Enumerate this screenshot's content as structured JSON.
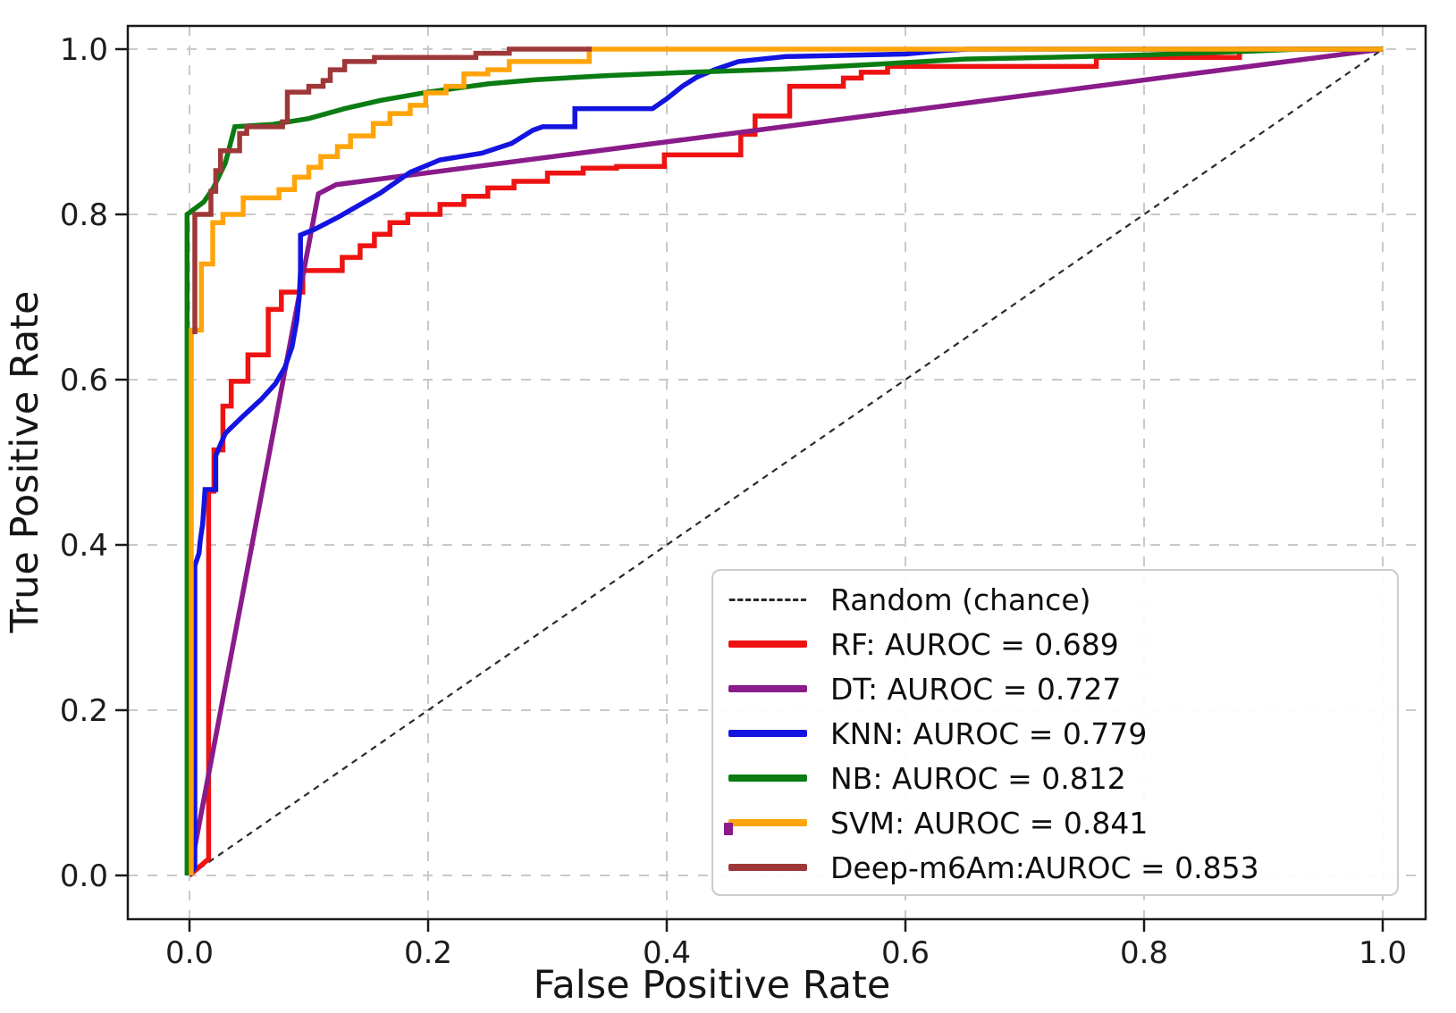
{
  "figure": {
    "type_note": "ROC curve comparison figure",
    "background": "#ffffff"
  },
  "colors": {
    "spine": "#1a1a1a",
    "grid": "#c9c9c9",
    "tick_label": "#1c1c1c",
    "legend_border": "#cccccc",
    "artifact_purple": "#8a1b8a"
  },
  "chart_data": {
    "type": "line",
    "title": "",
    "xlabel": "False Positive Rate",
    "ylabel": "True Positive Rate",
    "xlim": [
      -0.052,
      1.035
    ],
    "ylim": [
      -0.053,
      1.028
    ],
    "xticks": [
      0.0,
      0.2,
      0.4,
      0.6,
      0.8,
      1.0
    ],
    "yticks": [
      0.0,
      0.2,
      0.4,
      0.6,
      0.8,
      1.0
    ],
    "grid": true,
    "grid_style": "dashed",
    "legend_position": "lower right",
    "series": [
      {
        "name": "Random (chance)",
        "color": "#2a2a2a",
        "style": "dashed",
        "width": 2.2,
        "points": [
          [
            0,
            0
          ],
          [
            1,
            1
          ]
        ]
      },
      {
        "name": "RF: AUROC = 0.689",
        "auroc": 0.689,
        "color": "#ee1312",
        "style": "solid",
        "width": 5.5,
        "points": [
          [
            0,
            0
          ],
          [
            0.016,
            0.02
          ],
          [
            0.016,
            0.465
          ],
          [
            0.0205,
            0.465
          ],
          [
            0.0205,
            0.515
          ],
          [
            0.028,
            0.515
          ],
          [
            0.028,
            0.568
          ],
          [
            0.035,
            0.568
          ],
          [
            0.035,
            0.598
          ],
          [
            0.049,
            0.598
          ],
          [
            0.049,
            0.63
          ],
          [
            0.066,
            0.63
          ],
          [
            0.066,
            0.685
          ],
          [
            0.077,
            0.685
          ],
          [
            0.077,
            0.706
          ],
          [
            0.095,
            0.706
          ],
          [
            0.095,
            0.732
          ],
          [
            0.128,
            0.732
          ],
          [
            0.128,
            0.748
          ],
          [
            0.143,
            0.748
          ],
          [
            0.143,
            0.762
          ],
          [
            0.155,
            0.762
          ],
          [
            0.155,
            0.776
          ],
          [
            0.168,
            0.776
          ],
          [
            0.168,
            0.79
          ],
          [
            0.183,
            0.79
          ],
          [
            0.183,
            0.8
          ],
          [
            0.21,
            0.8
          ],
          [
            0.21,
            0.812
          ],
          [
            0.23,
            0.812
          ],
          [
            0.23,
            0.822
          ],
          [
            0.25,
            0.822
          ],
          [
            0.25,
            0.832
          ],
          [
            0.272,
            0.832
          ],
          [
            0.272,
            0.84
          ],
          [
            0.3,
            0.84
          ],
          [
            0.3,
            0.85
          ],
          [
            0.33,
            0.85
          ],
          [
            0.33,
            0.856
          ],
          [
            0.358,
            0.856
          ],
          [
            0.358,
            0.858
          ],
          [
            0.398,
            0.858
          ],
          [
            0.398,
            0.872
          ],
          [
            0.462,
            0.872
          ],
          [
            0.462,
            0.897
          ],
          [
            0.474,
            0.897
          ],
          [
            0.474,
            0.919
          ],
          [
            0.503,
            0.919
          ],
          [
            0.503,
            0.955
          ],
          [
            0.548,
            0.955
          ],
          [
            0.548,
            0.965
          ],
          [
            0.563,
            0.965
          ],
          [
            0.563,
            0.972
          ],
          [
            0.585,
            0.972
          ],
          [
            0.585,
            0.979
          ],
          [
            0.76,
            0.979
          ],
          [
            0.76,
            0.99
          ],
          [
            0.88,
            0.99
          ],
          [
            0.88,
            1
          ],
          [
            1,
            1
          ]
        ]
      },
      {
        "name": "DT: AUROC = 0.727",
        "auroc": 0.727,
        "color": "#8a1b8a",
        "style": "solid",
        "width": 5.5,
        "points": [
          [
            0,
            0
          ],
          [
            0.108,
            0.825
          ],
          [
            0.123,
            0.836
          ],
          [
            1,
            1
          ]
        ]
      },
      {
        "name": "KNN: AUROC = 0.779",
        "auroc": 0.779,
        "color": "#1414e0",
        "style": "solid",
        "width": 5.5,
        "points": [
          [
            0,
            0
          ],
          [
            0.0045,
            0.01
          ],
          [
            0.0045,
            0.375
          ],
          [
            0.008,
            0.39
          ],
          [
            0.009,
            0.405
          ],
          [
            0.011,
            0.425
          ],
          [
            0.012,
            0.445
          ],
          [
            0.013,
            0.467
          ],
          [
            0.022,
            0.467
          ],
          [
            0.022,
            0.508
          ],
          [
            0.03,
            0.535
          ],
          [
            0.045,
            0.556
          ],
          [
            0.06,
            0.576
          ],
          [
            0.072,
            0.595
          ],
          [
            0.08,
            0.615
          ],
          [
            0.086,
            0.64
          ],
          [
            0.09,
            0.672
          ],
          [
            0.092,
            0.7
          ],
          [
            0.093,
            0.732
          ],
          [
            0.093,
            0.775
          ],
          [
            0.105,
            0.782
          ],
          [
            0.125,
            0.797
          ],
          [
            0.16,
            0.826
          ],
          [
            0.185,
            0.851
          ],
          [
            0.21,
            0.866
          ],
          [
            0.245,
            0.874
          ],
          [
            0.27,
            0.886
          ],
          [
            0.288,
            0.902
          ],
          [
            0.296,
            0.906
          ],
          [
            0.323,
            0.906
          ],
          [
            0.323,
            0.928
          ],
          [
            0.388,
            0.928
          ],
          [
            0.4,
            0.94
          ],
          [
            0.413,
            0.955
          ],
          [
            0.425,
            0.966
          ],
          [
            0.44,
            0.975
          ],
          [
            0.46,
            0.985
          ],
          [
            0.5,
            0.991
          ],
          [
            0.6,
            0.994
          ],
          [
            0.63,
            0.998
          ],
          [
            0.652,
            1
          ],
          [
            1,
            1
          ]
        ]
      },
      {
        "name": "NB: AUROC = 0.812",
        "auroc": 0.812,
        "color": "#0b7c12",
        "style": "solid",
        "width": 5.5,
        "points": [
          [
            -0.002,
            0
          ],
          [
            -0.002,
            0.8
          ],
          [
            0.012,
            0.815
          ],
          [
            0.02,
            0.832
          ],
          [
            0.03,
            0.862
          ],
          [
            0.038,
            0.906
          ],
          [
            0.07,
            0.909
          ],
          [
            0.1,
            0.916
          ],
          [
            0.13,
            0.928
          ],
          [
            0.16,
            0.938
          ],
          [
            0.2,
            0.948
          ],
          [
            0.25,
            0.958
          ],
          [
            0.29,
            0.963
          ],
          [
            0.35,
            0.968
          ],
          [
            0.42,
            0.972
          ],
          [
            0.5,
            0.976
          ],
          [
            0.58,
            0.982
          ],
          [
            0.65,
            0.988
          ],
          [
            0.72,
            0.99
          ],
          [
            0.8,
            0.993
          ],
          [
            0.88,
            0.997
          ],
          [
            0.93,
            1
          ],
          [
            1,
            1
          ]
        ]
      },
      {
        "name": "SVM: AUROC = 0.841",
        "auroc": 0.841,
        "color": "#ffa40a",
        "style": "solid",
        "width": 5.5,
        "points": [
          [
            0.0015,
            0
          ],
          [
            0.0015,
            0.66
          ],
          [
            0.01,
            0.66
          ],
          [
            0.01,
            0.74
          ],
          [
            0.0195,
            0.74
          ],
          [
            0.0195,
            0.79
          ],
          [
            0.028,
            0.79
          ],
          [
            0.028,
            0.8
          ],
          [
            0.045,
            0.8
          ],
          [
            0.045,
            0.82
          ],
          [
            0.075,
            0.82
          ],
          [
            0.075,
            0.83
          ],
          [
            0.088,
            0.83
          ],
          [
            0.088,
            0.845
          ],
          [
            0.1,
            0.845
          ],
          [
            0.1,
            0.857
          ],
          [
            0.11,
            0.857
          ],
          [
            0.11,
            0.87
          ],
          [
            0.124,
            0.87
          ],
          [
            0.124,
            0.882
          ],
          [
            0.135,
            0.882
          ],
          [
            0.135,
            0.895
          ],
          [
            0.154,
            0.895
          ],
          [
            0.154,
            0.91
          ],
          [
            0.168,
            0.91
          ],
          [
            0.168,
            0.922
          ],
          [
            0.185,
            0.922
          ],
          [
            0.185,
            0.932
          ],
          [
            0.198,
            0.932
          ],
          [
            0.198,
            0.947
          ],
          [
            0.215,
            0.947
          ],
          [
            0.215,
            0.955
          ],
          [
            0.23,
            0.955
          ],
          [
            0.23,
            0.97
          ],
          [
            0.25,
            0.97
          ],
          [
            0.25,
            0.975
          ],
          [
            0.268,
            0.975
          ],
          [
            0.268,
            0.985
          ],
          [
            0.335,
            0.985
          ],
          [
            0.335,
            1
          ],
          [
            1,
            1
          ]
        ]
      },
      {
        "name": "Deep-m6Am:AUROC = 0.853",
        "auroc": 0.853,
        "color": "#9e3838",
        "style": "solid",
        "width": 5.5,
        "points": [
          [
            0.0045,
            0.655
          ],
          [
            0.0045,
            0.8
          ],
          [
            0.018,
            0.8
          ],
          [
            0.018,
            0.828
          ],
          [
            0.022,
            0.828
          ],
          [
            0.022,
            0.853
          ],
          [
            0.026,
            0.853
          ],
          [
            0.026,
            0.877
          ],
          [
            0.042,
            0.877
          ],
          [
            0.042,
            0.898
          ],
          [
            0.048,
            0.898
          ],
          [
            0.048,
            0.906
          ],
          [
            0.078,
            0.906
          ],
          [
            0.078,
            0.912
          ],
          [
            0.082,
            0.912
          ],
          [
            0.082,
            0.948
          ],
          [
            0.1,
            0.948
          ],
          [
            0.1,
            0.955
          ],
          [
            0.112,
            0.955
          ],
          [
            0.112,
            0.962
          ],
          [
            0.118,
            0.962
          ],
          [
            0.118,
            0.975
          ],
          [
            0.13,
            0.975
          ],
          [
            0.13,
            0.985
          ],
          [
            0.155,
            0.985
          ],
          [
            0.155,
            0.99
          ],
          [
            0.24,
            0.99
          ],
          [
            0.24,
            0.995
          ],
          [
            0.268,
            0.995
          ],
          [
            0.268,
            1
          ],
          [
            0.337,
            1
          ]
        ]
      }
    ]
  }
}
